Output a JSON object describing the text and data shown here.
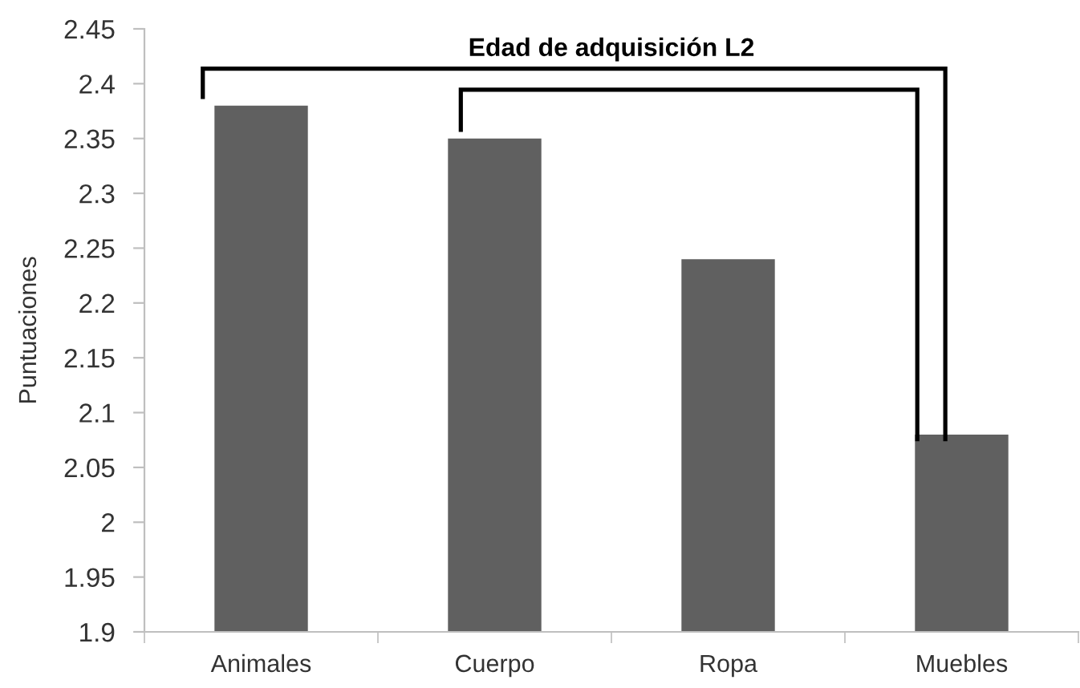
{
  "chart_data": {
    "type": "bar",
    "title": "Edad de adquisición L2",
    "ylabel": "Puntuaciones",
    "categories": [
      "Animales",
      "Cuerpo",
      "Ropa",
      "Muebles"
    ],
    "values": [
      2.38,
      2.35,
      2.24,
      2.08
    ],
    "color": "#606060",
    "ylim": [
      1.9,
      2.45
    ],
    "yticks": [
      1.9,
      1.95,
      2,
      2.05,
      2.1,
      2.15,
      2.2,
      2.25,
      2.3,
      2.35,
      2.4,
      2.45
    ]
  }
}
